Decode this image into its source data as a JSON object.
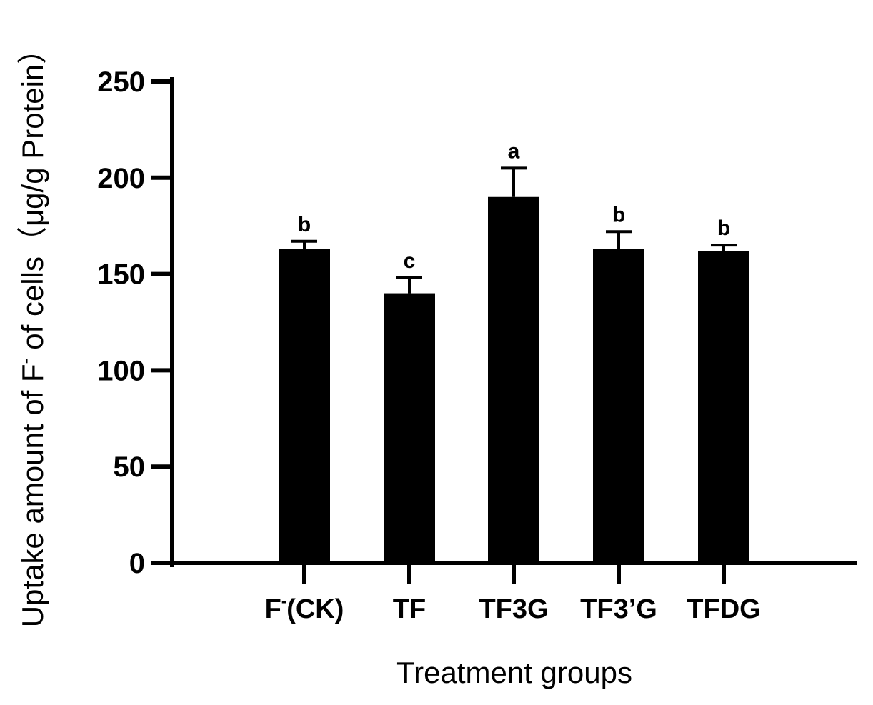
{
  "chart_data": {
    "type": "bar",
    "categories": [
      "F⁻(CK)",
      "TF",
      "TF3G",
      "TF3’G",
      "TFDG"
    ],
    "category_parts": [
      {
        "base": "F",
        "sup": "-",
        "rest": "(CK)"
      },
      {
        "base": "TF",
        "sup": "",
        "rest": ""
      },
      {
        "base": "TF3G",
        "sup": "",
        "rest": ""
      },
      {
        "base": "TF3’G",
        "sup": "",
        "rest": ""
      },
      {
        "base": "TFDG",
        "sup": "",
        "rest": ""
      }
    ],
    "values": [
      163,
      140,
      190,
      163,
      162
    ],
    "error": [
      4,
      8,
      15,
      9,
      3
    ],
    "significance": [
      "b",
      "c",
      "a",
      "b",
      "b"
    ],
    "ylim": [
      0,
      250
    ],
    "yticks": [
      0,
      50,
      100,
      150,
      200,
      250
    ],
    "xlabel": "Treatment groups",
    "ylabel": "Uptake amount of F⁻ of cells（μg/g Protein）",
    "ylabel_parts": {
      "before": "Uptake amount of F",
      "sup": "-",
      "after": " of cells（μg/g Protein）"
    },
    "bar_color": "#000000",
    "grid": false,
    "legend": "none"
  }
}
